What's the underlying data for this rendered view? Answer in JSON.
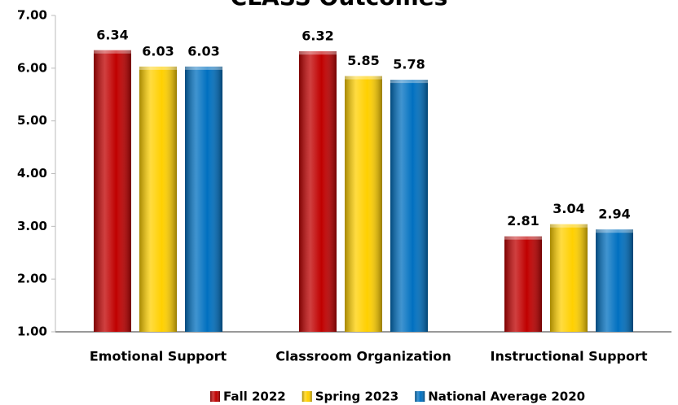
{
  "chart_data": {
    "type": "bar",
    "title": "CLASS Outcomes",
    "categories": [
      "Emotional Support",
      "Classroom Organization",
      "Instructional Support"
    ],
    "series": [
      {
        "name": "Fall 2022",
        "color": "#c00000",
        "values": [
          6.34,
          6.32,
          2.81
        ]
      },
      {
        "name": "Spring 2023",
        "color": "#ffd000",
        "values": [
          6.03,
          5.85,
          3.04
        ]
      },
      {
        "name": "National Average 2020",
        "color": "#0070c0",
        "values": [
          6.03,
          5.78,
          2.94
        ]
      }
    ],
    "ylim": [
      1,
      7
    ],
    "yticks": [
      {
        "value": 1,
        "label": "1.00"
      },
      {
        "value": 2,
        "label": "2.00"
      },
      {
        "value": 3,
        "label": "3.00"
      },
      {
        "value": 4,
        "label": "4.00"
      },
      {
        "value": 5,
        "label": "5.00"
      },
      {
        "value": 6,
        "label": "6.00"
      },
      {
        "value": 7,
        "label": "7.00"
      }
    ],
    "grid": false,
    "legend": "bottom"
  }
}
